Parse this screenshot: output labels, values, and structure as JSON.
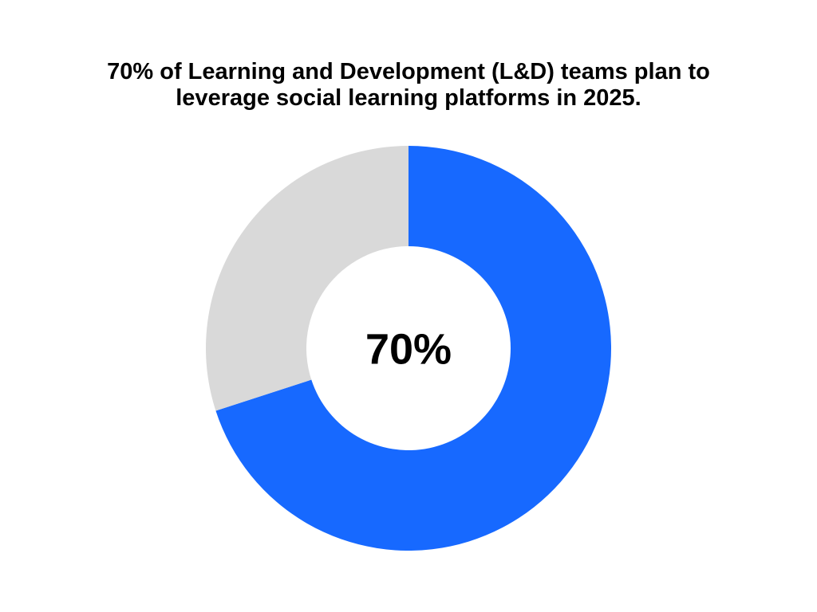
{
  "chart_data": {
    "type": "pie",
    "title_lines": [
      "70% of Learning and Development (L&D) teams plan to",
      "leverage social learning platforms in 2025."
    ],
    "center_label": "70%",
    "slices": [
      {
        "value": 70,
        "color": "#1769FF"
      },
      {
        "value": 30,
        "color": "#D9D9D9"
      }
    ],
    "legend": "none"
  }
}
